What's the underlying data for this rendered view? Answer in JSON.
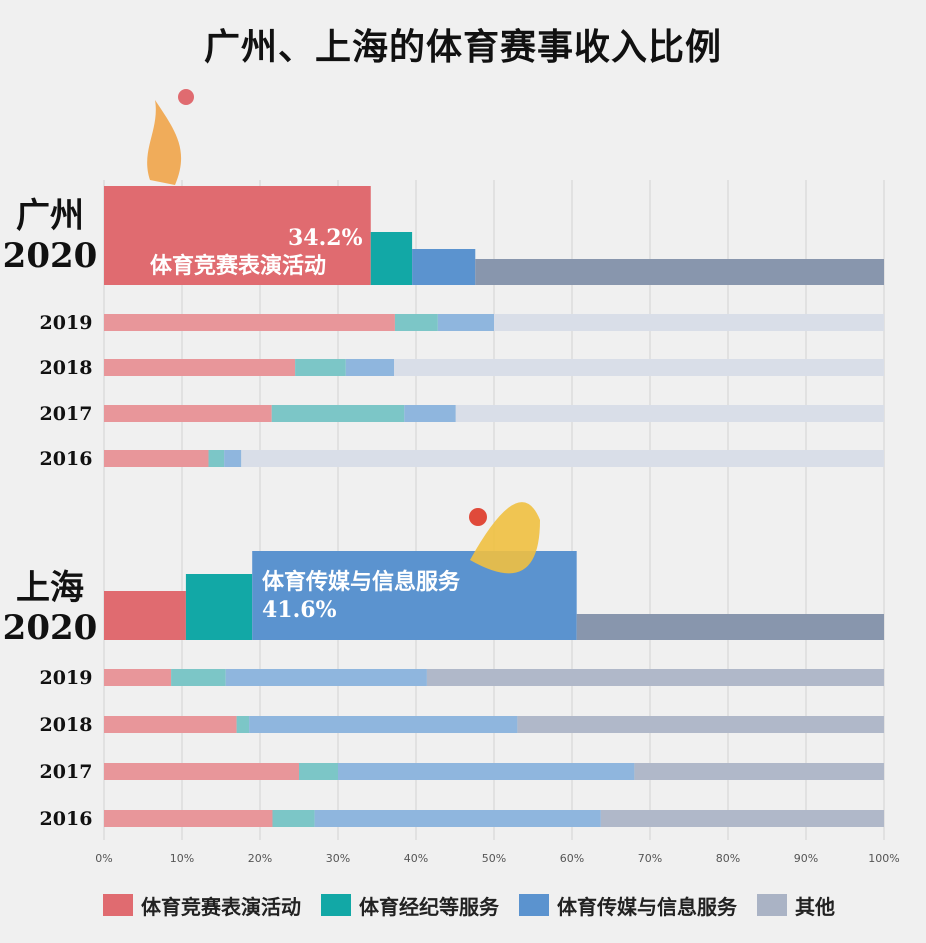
{
  "title": "广州、上海的体育赛事收入比例",
  "colors": {
    "competition": "#e06b70",
    "agency": "#12a8a6",
    "media": "#5b93cf",
    "other": "#8896ad"
  },
  "legend": [
    "体育竞赛表演活动",
    "体育经纪等服务",
    "体育传媒与信息服务",
    "其他"
  ],
  "callouts": {
    "guangzhou": {
      "value": "34.2%",
      "label": "体育竞赛表演活动"
    },
    "shanghai": {
      "label": "体育传媒与信息服务",
      "value": "41.6%"
    }
  },
  "chart_data": [
    {
      "type": "bar",
      "stacked": true,
      "orientation": "horizontal",
      "group": "广州",
      "categories": [
        "2020",
        "2019",
        "2018",
        "2017",
        "2016"
      ],
      "series": [
        {
          "name": "体育竞赛表演活动",
          "values": [
            34.2,
            37.3,
            24.5,
            21.5,
            13.4
          ]
        },
        {
          "name": "体育经纪等服务",
          "values": [
            5.3,
            5.5,
            6.5,
            17.0,
            2.0
          ]
        },
        {
          "name": "体育传媒与信息服务",
          "values": [
            8.1,
            7.2,
            6.2,
            6.6,
            2.2
          ]
        },
        {
          "name": "其他",
          "values": [
            52.4,
            50.0,
            62.8,
            54.9,
            82.4
          ]
        }
      ],
      "xlim": [
        0,
        100
      ],
      "xticks": [
        "0%",
        "10%",
        "20%",
        "30%",
        "40%",
        "50%",
        "60%",
        "70%",
        "80%",
        "90%",
        "100%"
      ]
    },
    {
      "type": "bar",
      "stacked": true,
      "orientation": "horizontal",
      "group": "上海",
      "categories": [
        "2020",
        "2019",
        "2018",
        "2017",
        "2016"
      ],
      "series": [
        {
          "name": "体育竞赛表演活动",
          "values": [
            10.5,
            8.6,
            17.0,
            25.0,
            21.6
          ]
        },
        {
          "name": "体育经纪等服务",
          "values": [
            8.5,
            7.0,
            1.6,
            5.0,
            5.4
          ]
        },
        {
          "name": "体育传媒与信息服务",
          "values": [
            41.6,
            25.8,
            34.4,
            38.0,
            36.7
          ]
        },
        {
          "name": "其他",
          "values": [
            39.4,
            58.6,
            47.0,
            32.0,
            36.3
          ]
        }
      ],
      "xlim": [
        0,
        100
      ],
      "xticks": [
        "0%",
        "10%",
        "20%",
        "30%",
        "40%",
        "50%",
        "60%",
        "70%",
        "80%",
        "90%",
        "100%"
      ]
    }
  ]
}
